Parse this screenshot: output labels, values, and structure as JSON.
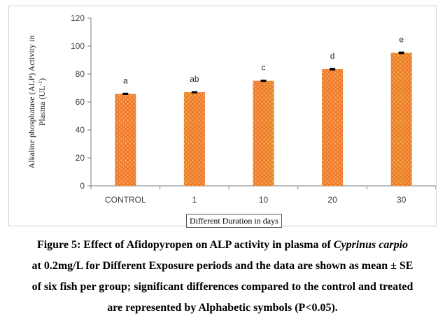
{
  "chart_data": {
    "type": "bar",
    "categories": [
      "CONTROL",
      "1",
      "10",
      "20",
      "30"
    ],
    "values": [
      65.8,
      67.0,
      75.2,
      83.5,
      95.2
    ],
    "errors": [
      0.3,
      0.3,
      0.3,
      0.4,
      0.4
    ],
    "significance_labels": [
      "a",
      "ab",
      "c",
      "d",
      "e"
    ],
    "xlabel": "Different Duration in days",
    "ylabel_line1": "Alkaline phosphatase (ALP) Activity in",
    "ylabel_line2_main": "Plasma (UL",
    "ylabel_line2_sup": "-1",
    "ylabel_line2_end": ")",
    "ylim": [
      0,
      120
    ],
    "yticks": [
      "0",
      "20",
      "40",
      "60",
      "80",
      "100",
      "120"
    ],
    "grid": false,
    "legend": "none",
    "bar_color": "#f07c36",
    "bar_dot_color": "#f5c242"
  },
  "caption": {
    "line1_prefix": "Figure 5: Effect of Afidopyropen on ALP activity in plasma of ",
    "line1_species": "Cyprinus carpio",
    "line2": "at 0.2mg/L for Different Exposure periods and the data are shown as mean ± SE",
    "line3": "of six fish per group; significant differences compared to the control and treated",
    "line4": "are represented by Alphabetic symbols (P<0.05)."
  }
}
